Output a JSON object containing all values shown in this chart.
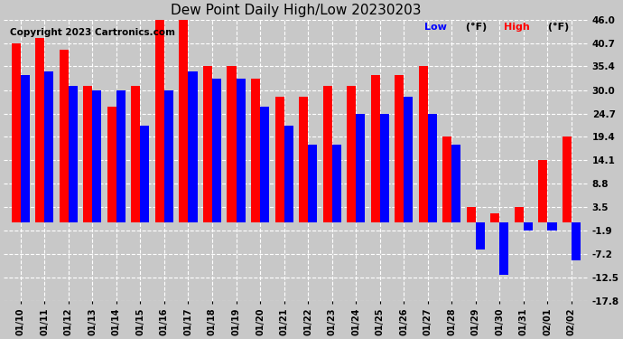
{
  "title": "Dew Point Daily High/Low 20230203",
  "copyright": "Copyright 2023 Cartronics.com",
  "dates": [
    "01/10",
    "01/11",
    "01/12",
    "01/13",
    "01/14",
    "01/15",
    "01/16",
    "01/17",
    "01/18",
    "01/19",
    "01/20",
    "01/21",
    "01/22",
    "01/23",
    "01/24",
    "01/25",
    "01/26",
    "01/27",
    "01/28",
    "01/29",
    "01/30",
    "01/31",
    "02/01",
    "02/02"
  ],
  "high": [
    40.7,
    41.9,
    39.2,
    30.9,
    26.2,
    30.9,
    46.0,
    46.0,
    35.4,
    35.4,
    32.5,
    28.4,
    28.4,
    30.9,
    30.9,
    33.4,
    33.4,
    35.4,
    19.4,
    3.5,
    2.0,
    3.5,
    14.1,
    19.4
  ],
  "low": [
    33.4,
    34.3,
    30.9,
    30.0,
    30.0,
    21.9,
    30.0,
    34.3,
    32.5,
    32.5,
    26.2,
    22.0,
    17.6,
    17.6,
    24.7,
    24.7,
    28.4,
    24.7,
    17.6,
    -6.1,
    -11.9,
    -1.9,
    -1.9,
    -8.6
  ],
  "high_color": "#ff0000",
  "low_color": "#0000ff",
  "bg_color": "#c8c8c8",
  "plot_bg": "#c8c8c8",
  "ylim_min": -17.8,
  "ylim_max": 46.0,
  "yticks": [
    46.0,
    40.7,
    35.4,
    30.0,
    24.7,
    19.4,
    14.1,
    8.8,
    3.5,
    -1.9,
    -7.2,
    -12.5,
    -17.8
  ],
  "grid_color": "#ffffff",
  "title_fontsize": 11,
  "copyright_fontsize": 7.5,
  "legend_low_label": "Low  (°F)",
  "legend_high_label": "High  (°F)"
}
